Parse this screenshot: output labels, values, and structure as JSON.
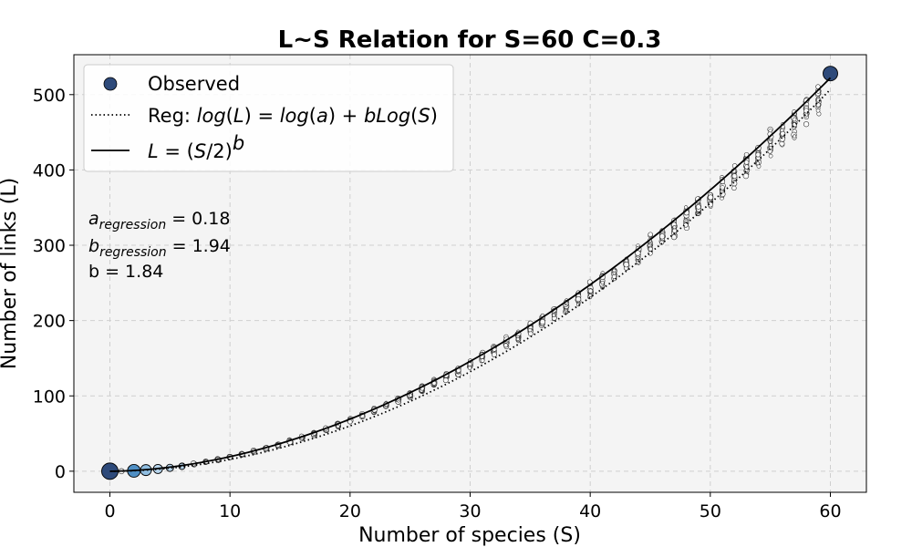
{
  "chart_data": {
    "type": "scatter",
    "title": "L~S Relation for S=60 C=0.3",
    "xlabel": "Number of species (S)",
    "ylabel": "Number of links (L)",
    "xlim": [
      -3,
      63
    ],
    "ylim": [
      -28,
      553
    ],
    "xticks": [
      0,
      10,
      20,
      30,
      40,
      50,
      60
    ],
    "yticks": [
      0,
      100,
      200,
      300,
      400,
      500
    ],
    "grid": true,
    "legend_position": "top-left",
    "legend": [
      {
        "label": "Observed",
        "marker": "circle"
      },
      {
        "label": "Reg: log(L) = log(a) + bLog(S)",
        "line": "dotted"
      },
      {
        "label": "L = (S/2)^b",
        "line": "solid"
      }
    ],
    "series": [
      {
        "name": "Observed",
        "style": "points",
        "summary": "many observed networks per species count S from 0 to 60; marker color light blue to dark navy with count"
      },
      {
        "name": "Reg: log(L) = log(a) + bLog(S)",
        "style": "dotted",
        "a": 0.18,
        "b": 1.94
      },
      {
        "name": "L = (S/2)^b",
        "style": "solid",
        "b": 1.84
      }
    ],
    "annotations": [
      {
        "base": "a",
        "sub": "regression",
        "value": "= 0.18"
      },
      {
        "base": "b",
        "sub": "regression",
        "value": "= 1.94"
      },
      {
        "text": "b = 1.84"
      }
    ]
  },
  "colors": {
    "plot_background": "#f4f4f4",
    "grid": "#cfcfcf",
    "marker_dark": "#2e4a7a",
    "marker_light": "#b8d6ee",
    "line": "#000000"
  }
}
